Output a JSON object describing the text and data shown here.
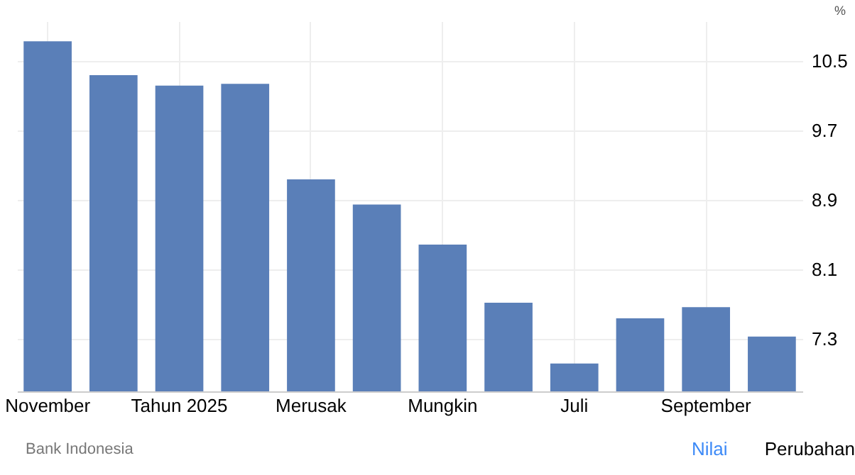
{
  "chart_data": {
    "type": "bar",
    "ylabel": "%",
    "categories": [
      "November",
      null,
      "Tahun 2025",
      null,
      "Merusak",
      null,
      "Mungkin",
      null,
      "Juli",
      null,
      "September",
      null
    ],
    "values": [
      10.73,
      10.34,
      10.22,
      10.24,
      9.14,
      8.85,
      8.39,
      7.72,
      7.02,
      7.54,
      7.67,
      7.33
    ],
    "color": "#5a7fb8",
    "ylim": [
      6.7,
      10.96
    ],
    "yticks": [
      7.3,
      8.1,
      8.9,
      9.7,
      10.5
    ],
    "grid": true,
    "annotations": [
      "Bank Indonesia",
      "Nilai",
      "Perubahan"
    ]
  }
}
